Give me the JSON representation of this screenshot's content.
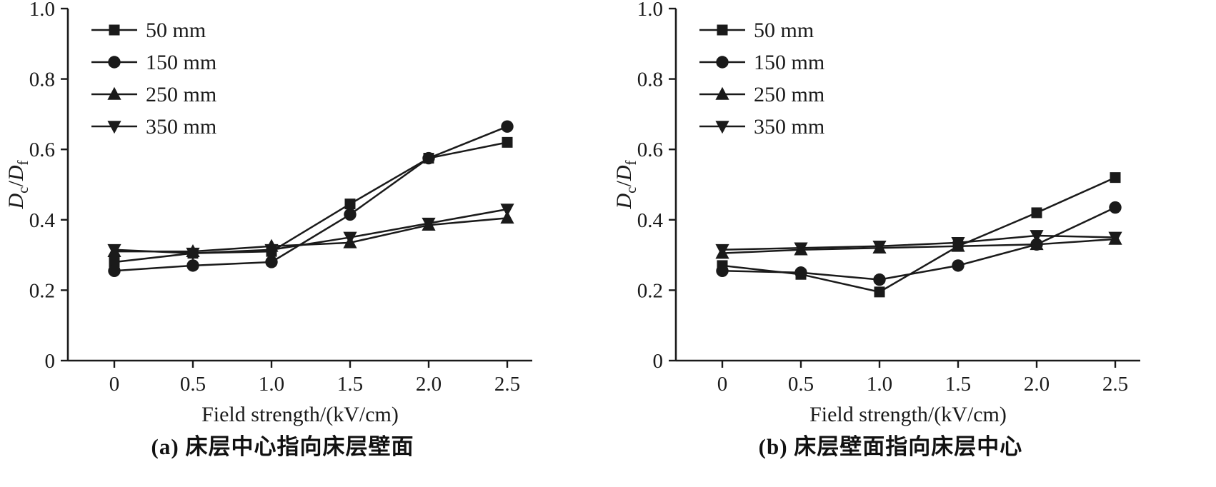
{
  "colors": {
    "ink": "#1a1a1a",
    "background": "#ffffff"
  },
  "chart_data": [
    {
      "id": "a",
      "type": "line",
      "caption": "(a) 床层中心指向床层壁面",
      "xlabel": "Field strength/(kV/cm)",
      "ylabel_plain": "Dc/Df",
      "ylabel_parts": [
        {
          "t": "D",
          "italic": true
        },
        {
          "t": "c",
          "sub": true
        },
        {
          "t": "/"
        },
        {
          "t": "D",
          "italic": true
        },
        {
          "t": "f",
          "sub": true
        }
      ],
      "x": [
        0,
        0.5,
        1.0,
        1.5,
        2.0,
        2.5
      ],
      "x_tick_labels": [
        "0",
        "0.5",
        "1.0",
        "1.5",
        "2.0",
        "2.5"
      ],
      "y_ticks": [
        {
          "v": 0,
          "label": "0"
        },
        {
          "v": 0.2,
          "label": "0.2"
        },
        {
          "v": 0.4,
          "label": "0.4"
        },
        {
          "v": 0.6,
          "label": "0.6"
        },
        {
          "v": 0.8,
          "label": "0.8"
        },
        {
          "v": 1.0,
          "label": "1.0"
        }
      ],
      "xlim": [
        -0.3,
        2.66
      ],
      "ylim": [
        0,
        1.0
      ],
      "grid": false,
      "legend_position": "top-left",
      "series": [
        {
          "name": "50 mm",
          "marker": "square",
          "values": [
            0.28,
            0.305,
            0.31,
            0.445,
            0.575,
            0.62
          ]
        },
        {
          "name": "150 mm",
          "marker": "circle",
          "values": [
            0.255,
            0.27,
            0.28,
            0.415,
            0.575,
            0.665
          ]
        },
        {
          "name": "250 mm",
          "marker": "triangle-up",
          "values": [
            0.31,
            0.31,
            0.325,
            0.335,
            0.385,
            0.405
          ]
        },
        {
          "name": "350 mm",
          "marker": "triangle-down",
          "values": [
            0.315,
            0.305,
            0.315,
            0.35,
            0.39,
            0.43
          ]
        }
      ]
    },
    {
      "id": "b",
      "type": "line",
      "caption": "(b) 床层壁面指向床层中心",
      "xlabel": "Field strength/(kV/cm)",
      "ylabel_plain": "Dc/Df",
      "ylabel_parts": [
        {
          "t": "D",
          "italic": true
        },
        {
          "t": "c",
          "sub": true
        },
        {
          "t": "/"
        },
        {
          "t": "D",
          "italic": true
        },
        {
          "t": "f",
          "sub": true
        }
      ],
      "x": [
        0,
        0.5,
        1.0,
        1.5,
        2.0,
        2.5
      ],
      "x_tick_labels": [
        "0",
        "0.5",
        "1.0",
        "1.5",
        "2.0",
        "2.5"
      ],
      "y_ticks": [
        {
          "v": 0,
          "label": "0"
        },
        {
          "v": 0.2,
          "label": "0.2"
        },
        {
          "v": 0.4,
          "label": "0.4"
        },
        {
          "v": 0.6,
          "label": "0.6"
        },
        {
          "v": 0.8,
          "label": "0.8"
        },
        {
          "v": 1.0,
          "label": "1.0"
        }
      ],
      "xlim": [
        -0.3,
        2.66
      ],
      "ylim": [
        0,
        1.0
      ],
      "grid": false,
      "legend_position": "top-left",
      "series": [
        {
          "name": "50 mm",
          "marker": "square",
          "values": [
            0.27,
            0.245,
            0.195,
            0.325,
            0.42,
            0.52
          ]
        },
        {
          "name": "150 mm",
          "marker": "circle",
          "values": [
            0.255,
            0.25,
            0.23,
            0.27,
            0.33,
            0.435
          ]
        },
        {
          "name": "250 mm",
          "marker": "triangle-up",
          "values": [
            0.305,
            0.315,
            0.32,
            0.325,
            0.33,
            0.345
          ]
        },
        {
          "name": "350 mm",
          "marker": "triangle-down",
          "values": [
            0.315,
            0.32,
            0.325,
            0.335,
            0.355,
            0.35
          ]
        }
      ]
    }
  ]
}
